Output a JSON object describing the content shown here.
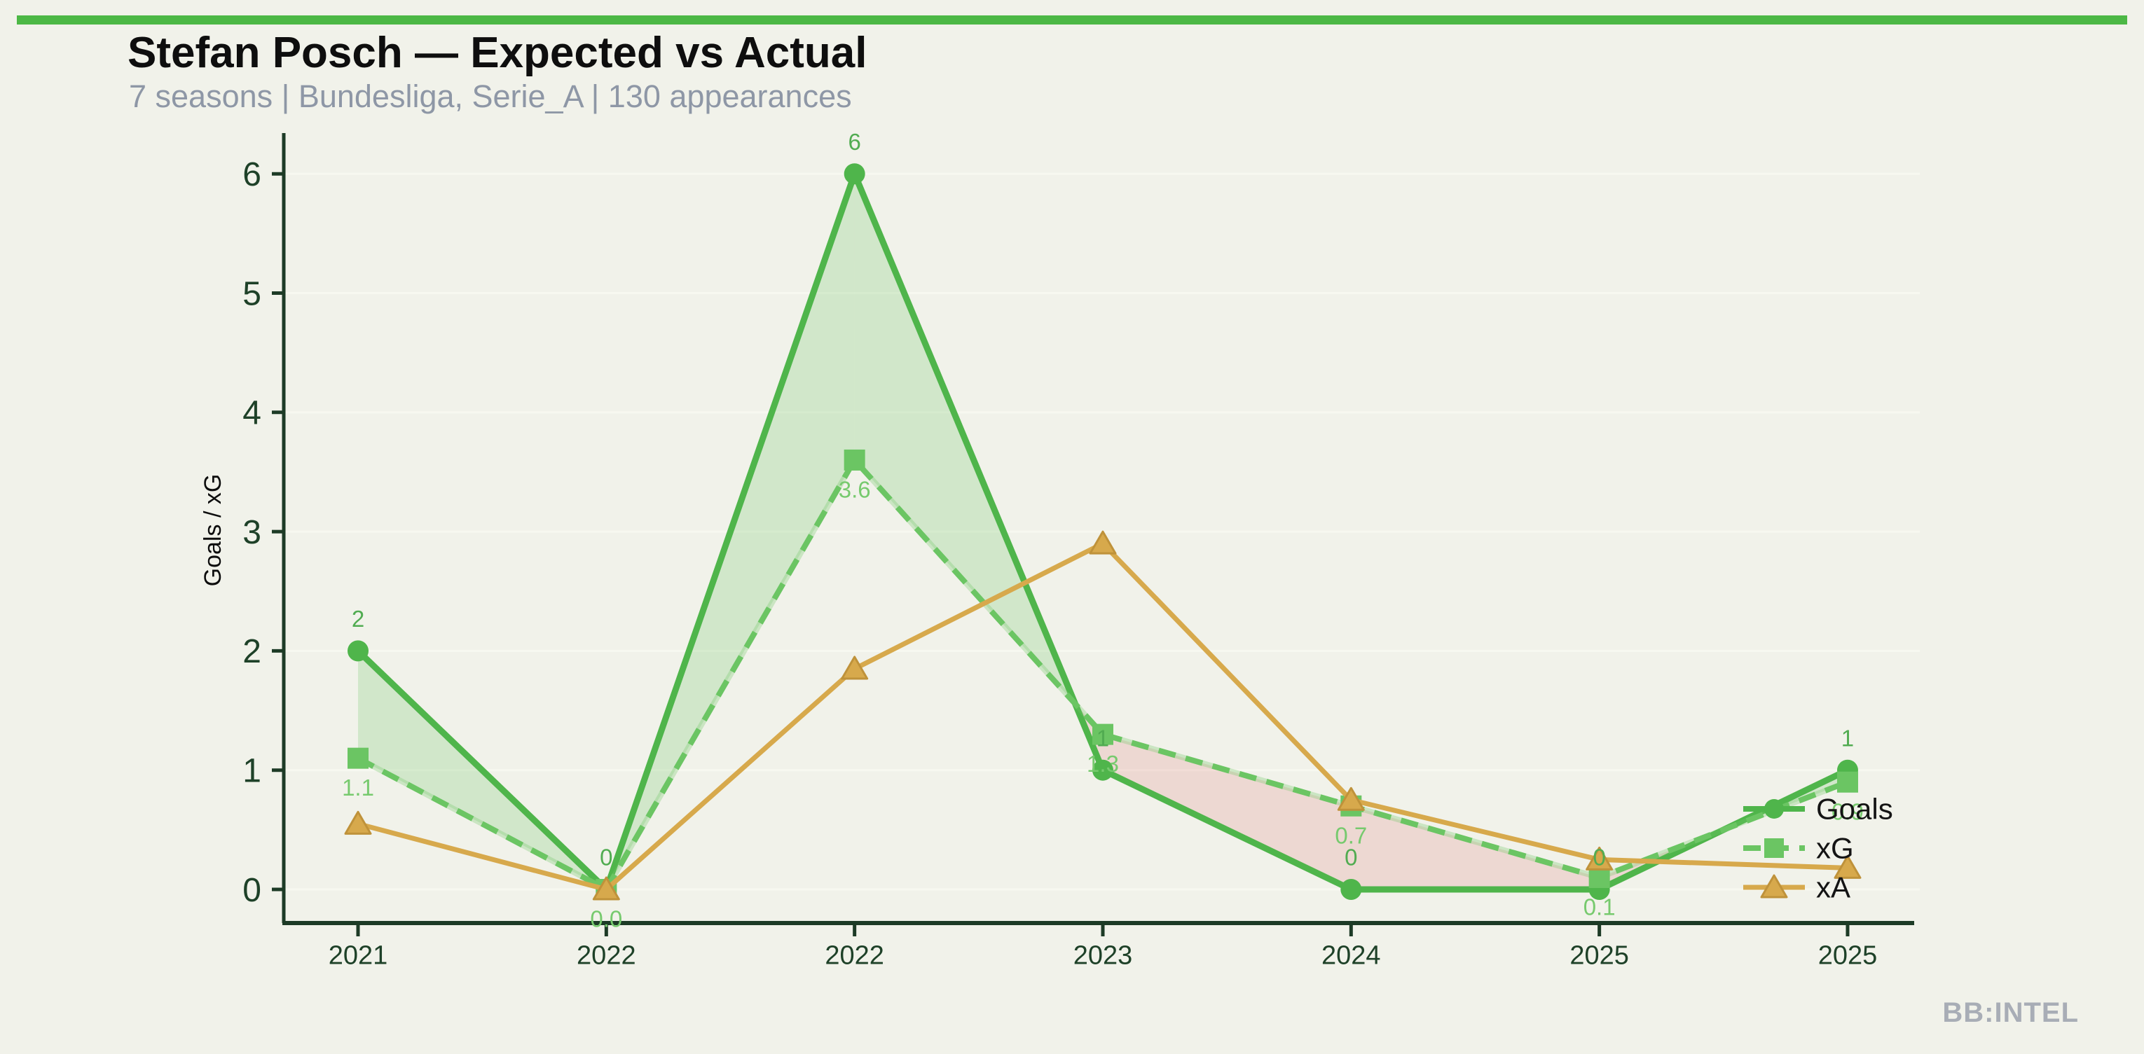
{
  "page": {
    "background": "#f1f2ea",
    "topbar_color": "#4cb845",
    "watermark": "BB:INTEL"
  },
  "header": {
    "title": "Stefan Posch — Expected vs Actual",
    "subtitle": "7 seasons | Bundesliga, Serie_A | 130 appearances"
  },
  "chart_data": {
    "type": "line",
    "title": "Stefan Posch — Expected vs Actual",
    "xlabel": "",
    "ylabel": "Goals / xG",
    "categories": [
      "2021",
      "2022",
      "2022",
      "2023",
      "2024",
      "2025",
      "2025"
    ],
    "yticks": [
      0,
      1,
      2,
      3,
      4,
      5,
      6
    ],
    "ytick_labels": [
      "0",
      "1",
      "2",
      "3",
      "4",
      "5",
      "6"
    ],
    "ylim": [
      -0.28,
      6.35
    ],
    "grid": "horizontal-faint",
    "legend_position": "inside-right",
    "series": [
      {
        "name": "Goals",
        "marker": "circle",
        "line_style": "solid",
        "color": "#4fb54b",
        "label_color": "#51ac51",
        "values": [
          2,
          0,
          6,
          1,
          0,
          0,
          1
        ],
        "labels": [
          "2",
          "0",
          "6",
          "1",
          "0",
          "0",
          "1"
        ]
      },
      {
        "name": "xG",
        "marker": "square",
        "line_style": "dashed",
        "color": "#6bc563",
        "label_color": "#77ca6e",
        "values": [
          1.1,
          0.0,
          3.6,
          1.3,
          0.7,
          0.1,
          0.9
        ],
        "labels": [
          "1.1",
          "0.0",
          "3.6",
          "1.3",
          "0.7",
          "0.1",
          "0.9"
        ]
      },
      {
        "name": "xA",
        "marker": "triangle",
        "line_style": "solid",
        "color": "#d7a94c",
        "marker_edge_color": "#bf923a",
        "values": [
          0.55,
          0.0,
          1.85,
          2.9,
          0.75,
          0.25,
          0.18
        ],
        "labels": []
      }
    ],
    "fill_between": {
      "upper_series": "Goals",
      "lower_series": "xG",
      "overperform_color": "rgba(110,197,100,0.24)",
      "underperform_color": "rgba(226,115,115,0.20)"
    },
    "axis_colors": {
      "spine": "#1d3b26",
      "tick_label": "#1e4128",
      "gridline": "#f7f8f0"
    }
  }
}
